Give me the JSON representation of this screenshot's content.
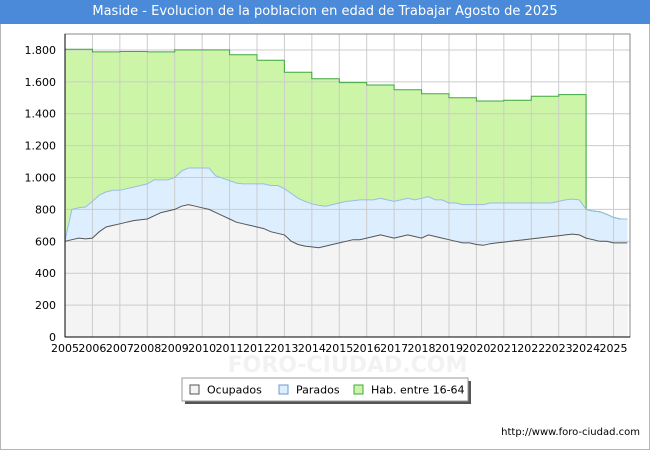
{
  "chart_data": {
    "type": "area",
    "title": "Maside - Evolucion de la poblacion en edad de Trabajar Agosto de 2025",
    "xlabel": "",
    "ylabel": "",
    "xlim": [
      2005,
      2025.6
    ],
    "ylim": [
      0,
      1900
    ],
    "x_ticks": [
      2005,
      2006,
      2007,
      2008,
      2009,
      2010,
      2011,
      2012,
      2013,
      2014,
      2015,
      2016,
      2017,
      2018,
      2019,
      2020,
      2021,
      2022,
      2023,
      2024,
      2025
    ],
    "y_ticks": [
      0,
      200,
      400,
      600,
      800,
      1000,
      1200,
      1400,
      1600,
      1800
    ],
    "y_tick_labels": [
      "0",
      "200",
      "400",
      "600",
      "800",
      "1.000",
      "1.200",
      "1.400",
      "1.600",
      "1.800"
    ],
    "hab_annual": {
      "years": [
        2005,
        2006,
        2007,
        2008,
        2009,
        2010,
        2011,
        2012,
        2013,
        2014,
        2015,
        2016,
        2017,
        2018,
        2019,
        2020,
        2021,
        2022,
        2023
      ],
      "values": [
        1805,
        1788,
        1790,
        1788,
        1800,
        1800,
        1770,
        1735,
        1660,
        1620,
        1595,
        1580,
        1550,
        1525,
        1500,
        1480,
        1485,
        1510,
        1520
      ]
    },
    "series": [
      {
        "name": "Ocupados",
        "x": [
          2005.0,
          2005.25,
          2005.5,
          2005.75,
          2006.0,
          2006.25,
          2006.5,
          2006.75,
          2007.0,
          2007.25,
          2007.5,
          2007.75,
          2008.0,
          2008.25,
          2008.5,
          2008.75,
          2009.0,
          2009.25,
          2009.5,
          2009.75,
          2010.0,
          2010.25,
          2010.5,
          2010.75,
          2011.0,
          2011.25,
          2011.5,
          2011.75,
          2012.0,
          2012.25,
          2012.5,
          2012.75,
          2013.0,
          2013.25,
          2013.5,
          2013.75,
          2014.0,
          2014.25,
          2014.5,
          2014.75,
          2015.0,
          2015.25,
          2015.5,
          2015.75,
          2016.0,
          2016.25,
          2016.5,
          2016.75,
          2017.0,
          2017.25,
          2017.5,
          2017.75,
          2018.0,
          2018.25,
          2018.5,
          2018.75,
          2019.0,
          2019.25,
          2019.5,
          2019.75,
          2020.0,
          2020.25,
          2020.5,
          2020.75,
          2021.0,
          2021.25,
          2021.5,
          2021.75,
          2022.0,
          2022.25,
          2022.5,
          2022.75,
          2023.0,
          2023.25,
          2023.5,
          2023.75,
          2024.0,
          2024.25,
          2024.5,
          2024.75,
          2025.0,
          2025.25,
          2025.5
        ],
        "values": [
          600,
          610,
          620,
          615,
          620,
          660,
          690,
          700,
          710,
          720,
          730,
          735,
          740,
          760,
          780,
          790,
          800,
          820,
          830,
          820,
          810,
          800,
          780,
          760,
          740,
          720,
          710,
          700,
          690,
          680,
          660,
          650,
          640,
          600,
          580,
          570,
          565,
          560,
          570,
          580,
          590,
          600,
          610,
          610,
          620,
          630,
          640,
          630,
          620,
          630,
          640,
          630,
          620,
          640,
          630,
          620,
          610,
          600,
          590,
          590,
          580,
          575,
          585,
          590,
          595,
          600,
          605,
          610,
          615,
          620,
          625,
          630,
          635,
          640,
          645,
          640,
          620,
          610,
          600,
          600,
          590,
          590,
          590
        ]
      },
      {
        "name": "Parados",
        "x": [
          2005.0,
          2005.25,
          2005.5,
          2005.75,
          2006.0,
          2006.25,
          2006.5,
          2006.75,
          2007.0,
          2007.25,
          2007.5,
          2007.75,
          2008.0,
          2008.25,
          2008.5,
          2008.75,
          2009.0,
          2009.25,
          2009.5,
          2009.75,
          2010.0,
          2010.25,
          2010.5,
          2010.75,
          2011.0,
          2011.25,
          2011.5,
          2011.75,
          2012.0,
          2012.25,
          2012.5,
          2012.75,
          2013.0,
          2013.25,
          2013.5,
          2013.75,
          2014.0,
          2014.25,
          2014.5,
          2014.75,
          2015.0,
          2015.25,
          2015.5,
          2015.75,
          2016.0,
          2016.25,
          2016.5,
          2016.75,
          2017.0,
          2017.25,
          2017.5,
          2017.75,
          2018.0,
          2018.25,
          2018.5,
          2018.75,
          2019.0,
          2019.25,
          2019.5,
          2019.75,
          2020.0,
          2020.25,
          2020.5,
          2020.75,
          2021.0,
          2021.25,
          2021.5,
          2021.75,
          2022.0,
          2022.25,
          2022.5,
          2022.75,
          2023.0,
          2023.25,
          2023.5,
          2023.75,
          2024.0,
          2024.25,
          2024.5,
          2024.75,
          2025.0,
          2025.25,
          2025.5
        ],
        "values": [
          5,
          190,
          190,
          200,
          230,
          230,
          220,
          220,
          210,
          210,
          210,
          215,
          220,
          225,
          205,
          195,
          200,
          220,
          230,
          240,
          250,
          260,
          230,
          235,
          240,
          245,
          250,
          260,
          270,
          280,
          290,
          300,
          290,
          300,
          290,
          280,
          270,
          265,
          250,
          250,
          250,
          250,
          245,
          250,
          240,
          230,
          230,
          230,
          230,
          230,
          230,
          230,
          250,
          240,
          230,
          240,
          230,
          240,
          240,
          240,
          250,
          255,
          255,
          250,
          245,
          240,
          235,
          230,
          225,
          220,
          215,
          210,
          215,
          220,
          220,
          220,
          180,
          180,
          185,
          170,
          160,
          150,
          150
        ]
      },
      {
        "name": "Hab. entre 16-64",
        "x": [
          2024.0,
          2024.25,
          2024.5,
          2024.75,
          2025.0,
          2025.25,
          2025.5
        ],
        "values": [
          800,
          790,
          785,
          770,
          750,
          740,
          740
        ]
      }
    ],
    "legend": [
      "Ocupados",
      "Parados",
      "Hab. entre 16-64"
    ],
    "legend_position": "bottom-center",
    "colors": {
      "ocupados_fill": "#f4f4f4",
      "ocupados_line": "#555555",
      "parados_fill": "#ddeeff",
      "parados_line": "#99bde4",
      "hab_fill": "#ccf5a8",
      "hab_line": "#3ea83e",
      "title_bg": "#4a8ad8"
    },
    "watermark": "FORO-CIUDAD.COM",
    "source": "http://www.foro-ciudad.com"
  }
}
